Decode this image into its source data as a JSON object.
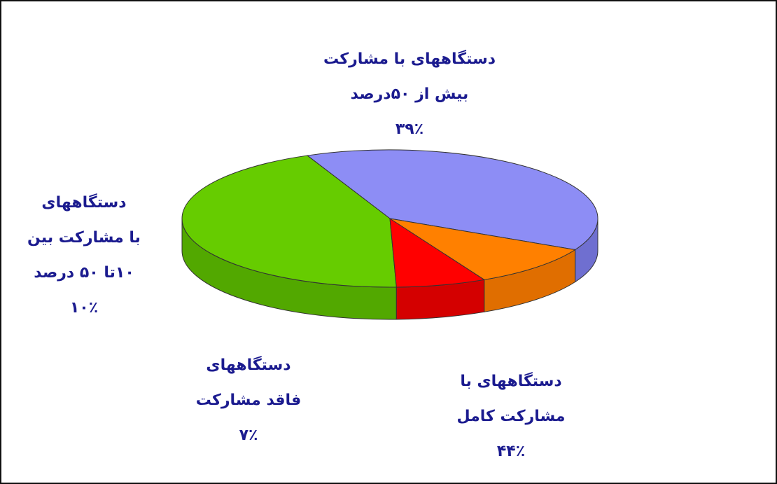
{
  "chart_data": {
    "type": "pie",
    "title": "",
    "style": "3d",
    "slices": [
      {
        "id": "partial-high",
        "lines": [
          "دستگاههای با مشارکت",
          "بیش از  ۵۰درصد",
          "۳۹٪"
        ],
        "value": 39,
        "color": "#8d8df5",
        "side_color": "#6f6fd0"
      },
      {
        "id": "full",
        "lines": [
          "دستگاههای با",
          "مشارکت کامل",
          "۴۴٪"
        ],
        "value": 44,
        "color": "#66cc00",
        "side_color": "#52a800"
      },
      {
        "id": "none",
        "lines": [
          "دستگاههای",
          "فاقد مشارکت",
          "۷٪"
        ],
        "value": 7,
        "color": "#ff0000",
        "side_color": "#d40000"
      },
      {
        "id": "partial-low",
        "lines": [
          "دستگاههای",
          "با مشارکت بین",
          "۱۰تا  ۵۰  درصد",
          "۱۰٪"
        ],
        "value": 10,
        "color": "#ff8000",
        "side_color": "#e06e00"
      }
    ]
  }
}
